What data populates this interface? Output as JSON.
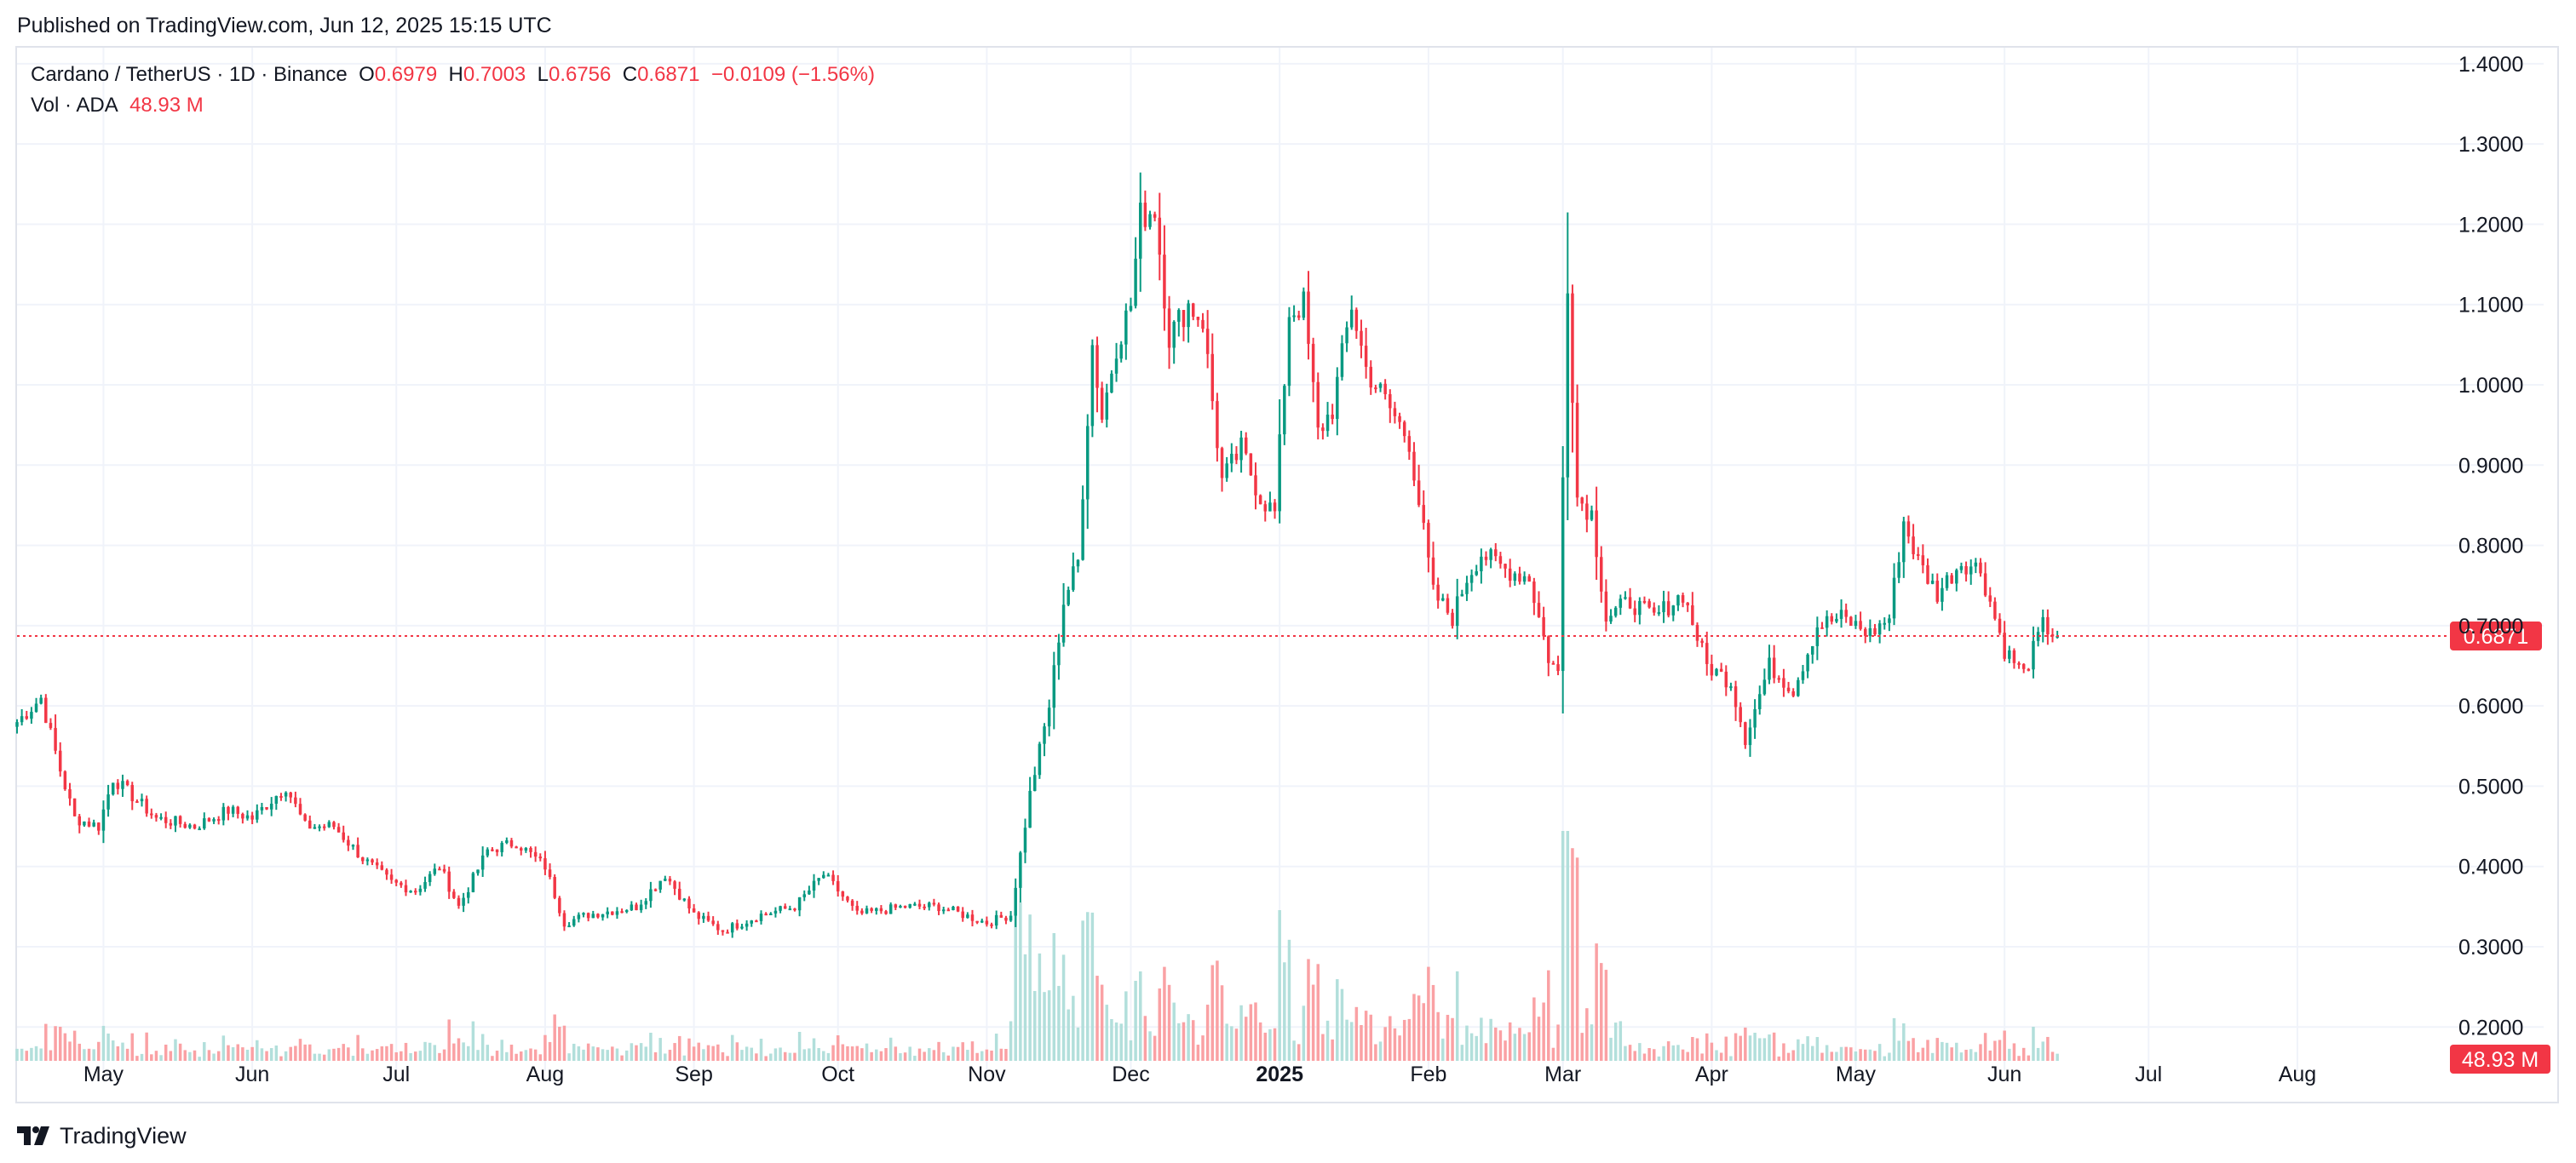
{
  "header": {
    "published": "Published on TradingView.com, Jun 12, 2025 15:15 UTC"
  },
  "legend": {
    "symbol": "Cardano / TetherUS · 1D · Binance",
    "open_label": "O",
    "open": "0.6979",
    "high_label": "H",
    "high": "0.7003",
    "low_label": "L",
    "low": "0.6756",
    "close_label": "C",
    "close": "0.6871",
    "change": "−0.0109 (−1.56%)",
    "vol_label": "Vol · ADA",
    "vol_value": "48.93 M"
  },
  "footer": {
    "brand": "TradingView",
    "logo_icon": "tradingview-logo-icon"
  },
  "colors": {
    "up": "#089981",
    "down": "#f23645",
    "vol_up": "#b2dfdb",
    "vol_down": "#faa1a4",
    "grid": "#f0f3fa",
    "text": "#131722"
  },
  "chart_data": {
    "type": "candlestick",
    "symbol": "Cardano / TetherUS",
    "interval": "1D",
    "exchange": "Binance",
    "y_axis": {
      "ticks": [
        "1.4000",
        "1.3000",
        "1.2000",
        "1.1000",
        "1.0000",
        "0.9000",
        "0.8000",
        "0.7000",
        "0.6000",
        "0.5000",
        "0.4000",
        "0.3000",
        "0.2000"
      ],
      "range": [
        0.16,
        1.42
      ],
      "side": "right"
    },
    "x_axis": {
      "range": [
        "2024-04-13",
        "2025-08-31"
      ],
      "ticks": [
        {
          "label": "May",
          "date": "2024-05-01"
        },
        {
          "label": "Jun",
          "date": "2024-06-01"
        },
        {
          "label": "Jul",
          "date": "2024-07-01"
        },
        {
          "label": "Aug",
          "date": "2024-08-01"
        },
        {
          "label": "Sep",
          "date": "2024-09-01"
        },
        {
          "label": "Oct",
          "date": "2024-10-01"
        },
        {
          "label": "Nov",
          "date": "2024-11-01"
        },
        {
          "label": "Dec",
          "date": "2024-12-01"
        },
        {
          "label": "2025",
          "date": "2025-01-01",
          "bold": true
        },
        {
          "label": "Feb",
          "date": "2025-02-01"
        },
        {
          "label": "Mar",
          "date": "2025-03-01"
        },
        {
          "label": "Apr",
          "date": "2025-04-01"
        },
        {
          "label": "May",
          "date": "2025-05-01"
        },
        {
          "label": "Jun",
          "date": "2025-06-01"
        },
        {
          "label": "Jul",
          "date": "2025-07-01"
        },
        {
          "label": "Aug",
          "date": "2025-08-01"
        }
      ]
    },
    "last_price": {
      "value": 0.6871,
      "label": "0.6871"
    },
    "last_volume": {
      "label": "48.93 M"
    },
    "price_path": [
      {
        "date": "2024-04-13",
        "close": 0.58
      },
      {
        "date": "2024-04-18",
        "close": 0.61
      },
      {
        "date": "2024-04-22",
        "close": 0.52
      },
      {
        "date": "2024-04-25",
        "close": 0.46
      },
      {
        "date": "2024-04-30",
        "close": 0.45
      },
      {
        "date": "2024-05-03",
        "close": 0.51
      },
      {
        "date": "2024-05-12",
        "close": 0.46
      },
      {
        "date": "2024-05-20",
        "close": 0.45
      },
      {
        "date": "2024-05-27",
        "close": 0.47
      },
      {
        "date": "2024-06-01",
        "close": 0.46
      },
      {
        "date": "2024-06-08",
        "close": 0.5
      },
      {
        "date": "2024-06-12",
        "close": 0.45
      },
      {
        "date": "2024-06-18",
        "close": 0.45
      },
      {
        "date": "2024-06-24",
        "close": 0.41
      },
      {
        "date": "2024-06-30",
        "close": 0.38
      },
      {
        "date": "2024-07-05",
        "close": 0.37
      },
      {
        "date": "2024-07-10",
        "close": 0.4
      },
      {
        "date": "2024-07-14",
        "close": 0.35
      },
      {
        "date": "2024-07-20",
        "close": 0.42
      },
      {
        "date": "2024-07-26",
        "close": 0.43
      },
      {
        "date": "2024-08-01",
        "close": 0.4
      },
      {
        "date": "2024-08-05",
        "close": 0.33
      },
      {
        "date": "2024-08-10",
        "close": 0.34
      },
      {
        "date": "2024-08-20",
        "close": 0.35
      },
      {
        "date": "2024-08-26",
        "close": 0.39
      },
      {
        "date": "2024-09-01",
        "close": 0.34
      },
      {
        "date": "2024-09-07",
        "close": 0.32
      },
      {
        "date": "2024-09-15",
        "close": 0.34
      },
      {
        "date": "2024-09-22",
        "close": 0.35
      },
      {
        "date": "2024-09-28",
        "close": 0.39
      },
      {
        "date": "2024-10-01",
        "close": 0.37
      },
      {
        "date": "2024-10-05",
        "close": 0.34
      },
      {
        "date": "2024-10-15",
        "close": 0.35
      },
      {
        "date": "2024-10-22",
        "close": 0.35
      },
      {
        "date": "2024-11-01",
        "close": 0.33
      },
      {
        "date": "2024-11-06",
        "close": 0.34
      },
      {
        "date": "2024-11-10",
        "close": 0.49
      },
      {
        "date": "2024-11-14",
        "close": 0.6
      },
      {
        "date": "2024-11-17",
        "close": 0.73
      },
      {
        "date": "2024-11-20",
        "close": 0.78
      },
      {
        "date": "2024-11-23",
        "close": 1.05
      },
      {
        "date": "2024-11-25",
        "close": 0.96
      },
      {
        "date": "2024-11-28",
        "close": 1.05
      },
      {
        "date": "2024-12-01",
        "close": 1.1
      },
      {
        "date": "2024-12-03",
        "close": 1.21
      },
      {
        "date": "2024-12-06",
        "close": 1.22
      },
      {
        "date": "2024-12-09",
        "close": 1.06
      },
      {
        "date": "2024-12-13",
        "close": 1.1
      },
      {
        "date": "2024-12-16",
        "close": 1.08
      },
      {
        "date": "2024-12-20",
        "close": 0.88
      },
      {
        "date": "2024-12-24",
        "close": 0.92
      },
      {
        "date": "2024-12-28",
        "close": 0.86
      },
      {
        "date": "2024-12-31",
        "close": 0.84
      },
      {
        "date": "2025-01-03",
        "close": 1.09
      },
      {
        "date": "2025-01-06",
        "close": 1.1
      },
      {
        "date": "2025-01-09",
        "close": 0.94
      },
      {
        "date": "2025-01-12",
        "close": 0.97
      },
      {
        "date": "2025-01-16",
        "close": 1.1
      },
      {
        "date": "2025-01-19",
        "close": 1.02
      },
      {
        "date": "2025-01-24",
        "close": 0.97
      },
      {
        "date": "2025-01-28",
        "close": 0.93
      },
      {
        "date": "2025-02-02",
        "close": 0.74
      },
      {
        "date": "2025-02-06",
        "close": 0.71
      },
      {
        "date": "2025-02-09",
        "close": 0.76
      },
      {
        "date": "2025-02-12",
        "close": 0.79
      },
      {
        "date": "2025-02-17",
        "close": 0.77
      },
      {
        "date": "2025-02-22",
        "close": 0.76
      },
      {
        "date": "2025-02-26",
        "close": 0.66
      },
      {
        "date": "2025-02-28",
        "close": 0.64
      },
      {
        "date": "2025-03-02",
        "close": 1.13
      },
      {
        "date": "2025-03-04",
        "close": 0.86
      },
      {
        "date": "2025-03-07",
        "close": 0.84
      },
      {
        "date": "2025-03-10",
        "close": 0.71
      },
      {
        "date": "2025-03-15",
        "close": 0.73
      },
      {
        "date": "2025-03-20",
        "close": 0.71
      },
      {
        "date": "2025-03-26",
        "close": 0.74
      },
      {
        "date": "2025-03-31",
        "close": 0.65
      },
      {
        "date": "2025-04-05",
        "close": 0.63
      },
      {
        "date": "2025-04-08",
        "close": 0.56
      },
      {
        "date": "2025-04-13",
        "close": 0.65
      },
      {
        "date": "2025-04-18",
        "close": 0.62
      },
      {
        "date": "2025-04-23",
        "close": 0.7
      },
      {
        "date": "2025-04-28",
        "close": 0.71
      },
      {
        "date": "2025-05-04",
        "close": 0.69
      },
      {
        "date": "2025-05-08",
        "close": 0.71
      },
      {
        "date": "2025-05-11",
        "close": 0.83
      },
      {
        "date": "2025-05-14",
        "close": 0.78
      },
      {
        "date": "2025-05-18",
        "close": 0.74
      },
      {
        "date": "2025-05-23",
        "close": 0.78
      },
      {
        "date": "2025-05-27",
        "close": 0.77
      },
      {
        "date": "2025-06-01",
        "close": 0.67
      },
      {
        "date": "2025-06-05",
        "close": 0.64
      },
      {
        "date": "2025-06-09",
        "close": 0.7
      },
      {
        "date": "2025-06-12",
        "close": 0.6871
      }
    ]
  }
}
